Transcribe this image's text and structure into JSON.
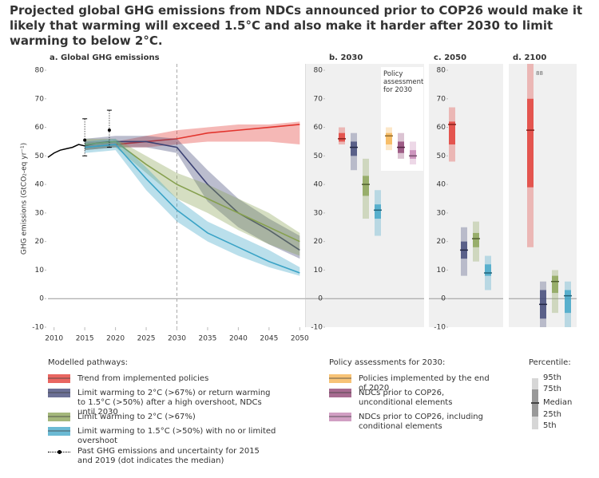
{
  "title": "Projected global GHG emissions from NDCs announced prior to COP26 would make it likely that warming will exceed 1.5°C and also make it harder after 2030 to limit warming to below 2°C.",
  "chart_data": [
    {
      "type": "line",
      "title": "a. Global GHG emissions",
      "y_label": "GHG emissions (GtCO₂-eq yr⁻¹)",
      "xlim": [
        2009,
        2051
      ],
      "xticks": [
        2010,
        2015,
        2020,
        2025,
        2030,
        2035,
        2040,
        2045,
        2050
      ],
      "ylim": [
        -10,
        80
      ],
      "yticks": [
        -10,
        0,
        10,
        20,
        30,
        40,
        50,
        60,
        70,
        80
      ],
      "marker_x": 2030,
      "past": {
        "name": "Past GHG emissions and uncertainty for 2015 and 2019 (dot indicates the median)",
        "color": "#000000",
        "x": [
          2009,
          2010,
          2011,
          2012,
          2013,
          2014,
          2015,
          2017,
          2019
        ],
        "values": [
          49.5,
          51,
          52,
          52.5,
          53,
          54,
          53.5,
          54.5,
          55
        ],
        "error_x": [
          2015,
          2019
        ],
        "error_values": [
          55.5,
          59
        ],
        "error_low": [
          50,
          53
        ],
        "error_high": [
          63,
          66
        ]
      },
      "x": [
        2015,
        2020,
        2025,
        2030,
        2035,
        2040,
        2045,
        2050
      ],
      "series": [
        {
          "name": "Trend from implemented policies",
          "color": "#e2342d",
          "values": [
            53,
            54,
            55,
            56,
            58,
            59,
            60,
            61
          ],
          "low": [
            52,
            53,
            53,
            54,
            55,
            55,
            55,
            54
          ],
          "high": [
            55,
            55,
            57,
            59,
            60,
            61,
            61,
            62
          ]
        },
        {
          "name": "Limit warming to 2°C (>67%) or return warming to 1.5°C (>50%) after a high overshoot, NDCs until 2030",
          "color": "#3b4173",
          "values": [
            54,
            55,
            55,
            53,
            40,
            30,
            24,
            17
          ],
          "low": [
            52,
            53,
            53,
            51,
            34,
            25,
            19,
            14
          ],
          "high": [
            56,
            57,
            57,
            56,
            45,
            35,
            28,
            22
          ]
        },
        {
          "name": "Limit warming to 2°C (>67%)",
          "color": "#86a04f",
          "values": [
            54,
            55,
            47,
            40,
            35,
            30,
            25,
            20
          ],
          "low": [
            52,
            53,
            44,
            35,
            30,
            24,
            19,
            15
          ],
          "high": [
            56,
            56,
            50,
            44,
            40,
            35,
            30,
            23
          ]
        },
        {
          "name": "Limit warming to 1.5°C (>50%) with no or limited overshoot",
          "color": "#3aa3c6",
          "values": [
            53,
            54,
            42,
            31,
            23,
            18,
            13,
            9
          ],
          "low": [
            51,
            52,
            38,
            27,
            20,
            15,
            11,
            8
          ],
          "high": [
            55,
            56,
            46,
            35,
            27,
            22,
            17,
            11
          ]
        }
      ]
    },
    {
      "type": "percentile",
      "title": "b. 2030",
      "ylim": [
        -10,
        80
      ],
      "yticks": [
        -10,
        0,
        10,
        20,
        30,
        40,
        50,
        60,
        70,
        80
      ],
      "note": "Policy assessments for 2030",
      "groups": [
        {
          "color": "#e2342d",
          "values": [
            54,
            55,
            56,
            58,
            60
          ]
        },
        {
          "color": "#3b4173",
          "values": [
            45,
            50,
            53,
            55,
            58
          ]
        },
        {
          "color": "#86a04f",
          "values": [
            28,
            36,
            40,
            43,
            49
          ]
        },
        {
          "color": "#3aa3c6",
          "values": [
            22,
            28,
            31,
            33,
            38
          ]
        },
        {
          "color": "#f5b04a",
          "values": [
            52,
            54,
            57,
            58,
            60
          ]
        },
        {
          "color": "#8a3a6c",
          "values": [
            49,
            51,
            53,
            55,
            58
          ]
        },
        {
          "color": "#c27fb0",
          "values": [
            47,
            49,
            50,
            52,
            55
          ]
        }
      ]
    },
    {
      "type": "percentile",
      "title": "c. 2050",
      "ylim": [
        -10,
        80
      ],
      "yticks": [
        -10,
        0,
        10,
        20,
        30,
        40,
        50,
        60,
        70,
        80
      ],
      "groups": [
        {
          "color": "#e2342d",
          "values": [
            48,
            54,
            61,
            62,
            67
          ]
        },
        {
          "color": "#3b4173",
          "values": [
            8,
            14,
            17,
            20,
            25
          ]
        },
        {
          "color": "#86a04f",
          "values": [
            13,
            18,
            21,
            23,
            27
          ]
        },
        {
          "color": "#3aa3c6",
          "values": [
            3,
            8,
            9,
            12,
            15
          ]
        }
      ]
    },
    {
      "type": "percentile",
      "title": "d. 2100",
      "ylim": [
        -10,
        80
      ],
      "groups": [
        {
          "color": "#e2342d",
          "values": [
            18,
            39,
            59,
            70,
            88
          ]
        },
        {
          "color": "#3b4173",
          "values": [
            -11,
            -7,
            -2,
            3,
            6
          ]
        },
        {
          "color": "#86a04f",
          "values": [
            -5,
            2,
            6,
            8,
            10
          ]
        },
        {
          "color": "#3aa3c6",
          "values": [
            -10,
            -5,
            1,
            3,
            6
          ]
        }
      ]
    }
  ],
  "legend": {
    "pathways_title": "Modelled pathways:",
    "policy_title": "Policy assessments for 2030:",
    "policy_items": [
      {
        "name": "Policies implemented by the end of 2020",
        "color": "#f5b04a"
      },
      {
        "name": "NDCs prior to COP26, unconditional elements",
        "color": "#8a3a6c"
      },
      {
        "name": "NDCs prior to COP26, including conditional elements",
        "color": "#c27fb0"
      }
    ],
    "percentile_title": "Percentile:",
    "percentile_labels": [
      "95th",
      "75th",
      "Median",
      "25th",
      "5th"
    ]
  }
}
